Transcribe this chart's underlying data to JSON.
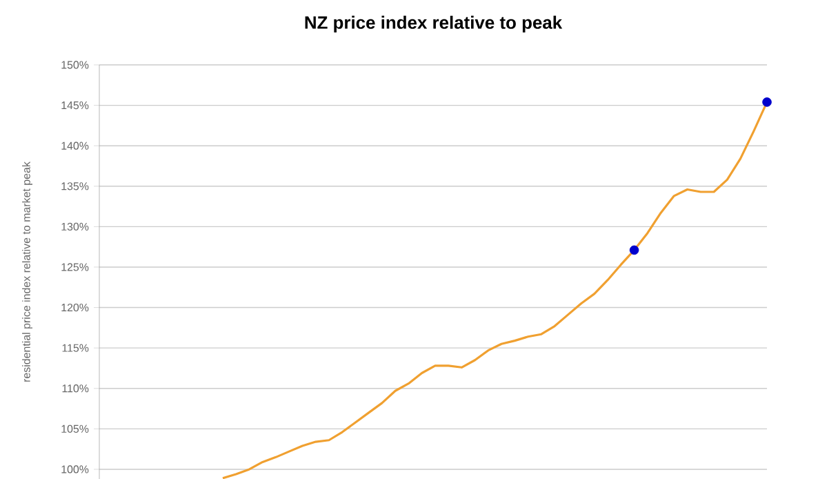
{
  "chart_data": {
    "type": "line",
    "title": "NZ price index relative to peak",
    "ylabel": "residential price index relative to market peak",
    "categories": [
      null,
      null,
      null,
      null,
      null,
      null,
      null,
      null,
      null,
      null,
      null,
      null,
      null,
      null,
      null,
      null,
      null,
      null,
      null,
      null,
      null,
      null,
      null,
      null,
      null,
      null,
      null,
      null,
      null,
      null,
      null,
      null,
      null,
      null,
      null,
      null,
      null,
      null,
      null,
      null,
      null,
      null,
      null,
      null,
      null,
      null,
      null,
      null,
      null,
      null,
      null
    ],
    "series": [
      {
        "color": "#f0a030",
        "marker": "none",
        "values": [
          null,
          null,
          null,
          null,
          null,
          null,
          null,
          null,
          null,
          98.9,
          99.4,
          100.0,
          100.9,
          101.5,
          102.2,
          102.9,
          103.4,
          103.6,
          104.6,
          105.8,
          107.0,
          108.2,
          109.7,
          110.6,
          111.9,
          112.8,
          112.8,
          112.6,
          113.5,
          114.7,
          115.5,
          115.9,
          116.4,
          116.7,
          117.7,
          119.1,
          120.5,
          121.7,
          123.4,
          125.3,
          127.1,
          129.2,
          131.7,
          133.8,
          134.6,
          134.3,
          134.3,
          135.8,
          138.4,
          141.8,
          145.4
        ]
      },
      {
        "type": "scatter",
        "color": "#0000cc",
        "marker": "circle",
        "values": [
          null,
          null,
          null,
          null,
          null,
          null,
          null,
          null,
          null,
          null,
          null,
          null,
          null,
          null,
          null,
          null,
          null,
          null,
          null,
          null,
          null,
          null,
          null,
          null,
          null,
          null,
          null,
          null,
          null,
          null,
          null,
          null,
          null,
          null,
          null,
          null,
          null,
          null,
          null,
          null,
          127.1,
          null,
          null,
          null,
          null,
          null,
          null,
          null,
          null,
          null,
          145.4
        ]
      }
    ],
    "ylim": [
      98.8,
      150
    ],
    "yticks": [
      {
        "value": 100,
        "label": "100%"
      },
      {
        "value": 105,
        "label": "105%"
      },
      {
        "value": 110,
        "label": "110%"
      },
      {
        "value": 115,
        "label": "115%"
      },
      {
        "value": 120,
        "label": "120%"
      },
      {
        "value": 125,
        "label": "125%"
      },
      {
        "value": 130,
        "label": "130%"
      },
      {
        "value": 135,
        "label": "135%"
      },
      {
        "value": 140,
        "label": "140%"
      },
      {
        "value": 145,
        "label": "145%"
      },
      {
        "value": 150,
        "label": "150%"
      }
    ],
    "grid": "y",
    "tick_labels": "y"
  }
}
